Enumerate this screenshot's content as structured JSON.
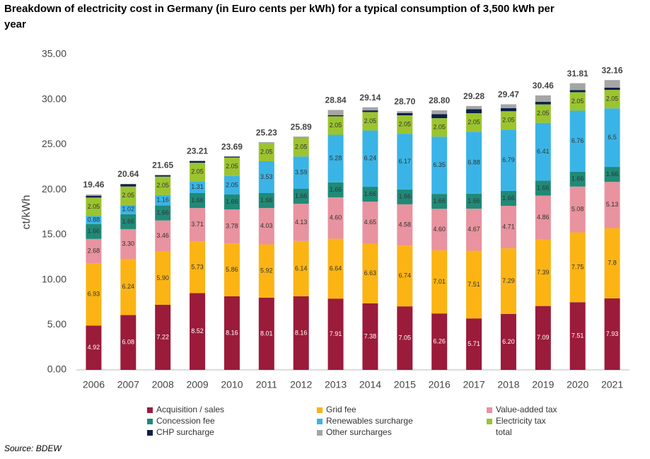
{
  "chart_data": {
    "type": "stacked-bar",
    "title": "Breakdown of electricity cost in Germany (in Euro cents per kWh) for a typical consumption of 3,500 kWh per year",
    "y_label": "ct/kWh",
    "source": "Source: BDEW",
    "categories": [
      "2006",
      "2007",
      "2008",
      "2009",
      "2010",
      "2011",
      "2012",
      "2013",
      "2014",
      "2015",
      "2016",
      "2017",
      "2018",
      "2019",
      "2020",
      "2021"
    ],
    "ylim": [
      0,
      35
    ],
    "yticks": [
      {
        "value": 0,
        "label": "0.00"
      },
      {
        "value": 5,
        "label": "5.00"
      },
      {
        "value": 10,
        "label": "10.00"
      },
      {
        "value": 15,
        "label": "15.00"
      },
      {
        "value": 20,
        "label": "20.00"
      },
      {
        "value": 25,
        "label": "25.00"
      },
      {
        "value": 30,
        "label": "30.00"
      },
      {
        "value": 35,
        "label": "35.00"
      }
    ],
    "series": [
      {
        "name": "Acquisition / sales",
        "color": "#9b1b3a",
        "values": [
          4.92,
          6.08,
          7.22,
          8.52,
          8.16,
          8.01,
          8.16,
          7.91,
          7.38,
          7.05,
          6.26,
          5.71,
          6.2,
          7.09,
          7.51,
          7.93
        ],
        "value_labels": [
          "4.92",
          "6.08",
          "7.22",
          "8.52",
          "8.16",
          "8.01",
          "8.16",
          "7.91",
          "7.38",
          "7.05",
          "6.26",
          "5.71",
          "6.20",
          "7.09",
          "7.51",
          "7.93"
        ]
      },
      {
        "name": "Grid fee",
        "color": "#fbb414",
        "values": [
          6.93,
          6.24,
          5.9,
          5.73,
          5.86,
          5.92,
          6.14,
          6.64,
          6.63,
          6.74,
          7.01,
          7.51,
          7.29,
          7.39,
          7.75,
          7.8
        ],
        "value_labels": [
          "6.93",
          "6.24",
          "5.90",
          "5.73",
          "5.86",
          "5.92",
          "6.14",
          "6.64",
          "6.63",
          "6.74",
          "7.01",
          "7.51",
          "7.29",
          "7.39",
          "7.75",
          "7.8"
        ]
      },
      {
        "name": "Value-added tax",
        "color": "#e8939f",
        "values": [
          2.68,
          3.3,
          3.46,
          3.71,
          3.78,
          4.03,
          4.13,
          4.6,
          4.65,
          4.58,
          4.6,
          4.67,
          4.71,
          4.86,
          5.08,
          5.13
        ],
        "value_labels": [
          "2.68",
          "3.30",
          "3.46",
          "3.71",
          "3.78",
          "4.03",
          "4.13",
          "4.60",
          "4.65",
          "4.58",
          "4.60",
          "4.67",
          "4.71",
          "4.86",
          "5.08",
          "5.13"
        ]
      },
      {
        "name": "Concession fee",
        "color": "#1f8a77",
        "values": [
          1.66,
          1.66,
          1.66,
          1.66,
          1.66,
          1.66,
          1.66,
          1.66,
          1.66,
          1.66,
          1.66,
          1.66,
          1.66,
          1.66,
          1.66,
          1.66
        ],
        "value_labels": [
          "1.66",
          "1.66",
          "1.66",
          "1.66",
          "1.66",
          "1.66",
          "1.66",
          "1.66",
          "1.66",
          "1.66",
          "1.66",
          "1.66",
          "1.66",
          "1.66",
          "1.66",
          "1.66"
        ]
      },
      {
        "name": "Renewables surcharge",
        "color": "#3ab4e6",
        "values": [
          0.88,
          1.02,
          1.16,
          1.31,
          2.05,
          3.53,
          3.59,
          5.28,
          6.24,
          6.17,
          6.35,
          6.88,
          6.79,
          6.41,
          6.76,
          6.5
        ],
        "value_labels": [
          "0.88",
          "1.02",
          "1.16",
          "1.31",
          "2.05",
          "3.53",
          "3.59",
          "5.28",
          "6.24",
          "6.17",
          "6.35",
          "6.88",
          "6.79",
          "6.41",
          "6.76",
          "6.5"
        ]
      },
      {
        "name": "Electricity tax",
        "color": "#9bc42f",
        "values": [
          2.05,
          2.05,
          2.05,
          2.05,
          2.05,
          2.05,
          2.05,
          2.05,
          2.05,
          2.05,
          2.05,
          2.05,
          2.05,
          2.05,
          2.05,
          2.05
        ],
        "value_labels": [
          "2.05",
          "2.05",
          "2.05",
          "2.05",
          "2.05",
          "2.05",
          "2.05",
          "2.05",
          "2.05",
          "2.05",
          "2.05",
          "2.05",
          "2.05",
          "2.05",
          "2.05",
          "2.05"
        ]
      },
      {
        "name": "CHP surcharge",
        "color": "#0c1f4a",
        "values": [
          0.2,
          0.25,
          0.15,
          0.2,
          0.1,
          0.03,
          0.02,
          0.13,
          0.18,
          0.25,
          0.45,
          0.44,
          0.35,
          0.28,
          0.23,
          0.25
        ]
      },
      {
        "name": "Other surcharges",
        "color": "#a5a5a5",
        "values": [
          0.14,
          0.04,
          0.05,
          0.03,
          0.03,
          0,
          0.14,
          0.57,
          0.35,
          0.2,
          0.42,
          0.36,
          0.42,
          0.72,
          0.77,
          0.84
        ]
      }
    ],
    "totals": {
      "name": "total",
      "values": [
        19.46,
        20.64,
        21.65,
        23.21,
        23.69,
        25.23,
        25.89,
        28.84,
        29.14,
        28.7,
        28.8,
        29.28,
        29.47,
        30.46,
        31.81,
        32.16
      ],
      "value_labels": [
        "19.46",
        "20.64",
        "21.65",
        "23.21",
        "23.69",
        "25.23",
        "25.89",
        "28.84",
        "29.14",
        "28.70",
        "28.80",
        "29.28",
        "29.47",
        "30.46",
        "31.81",
        "32.16"
      ]
    }
  }
}
